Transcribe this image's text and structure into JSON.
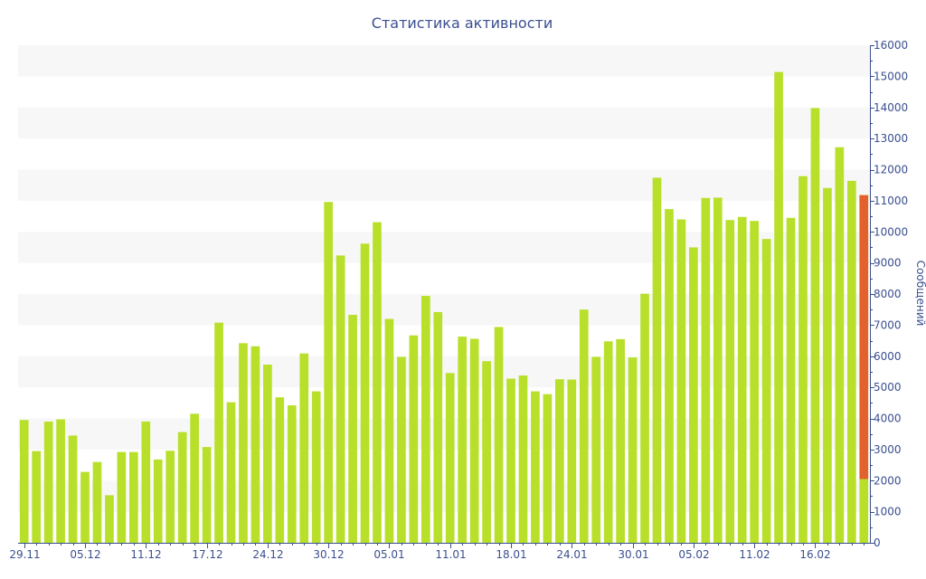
{
  "chart_data": {
    "type": "bar",
    "title": "Статистика активности",
    "ylabel": "Сообщений",
    "ylim": [
      0,
      16000
    ],
    "y_ticks": [
      0,
      1000,
      2000,
      3000,
      4000,
      5000,
      6000,
      7000,
      8000,
      9000,
      10000,
      11000,
      12000,
      13000,
      14000,
      15000,
      16000
    ],
    "y_axis_position": "right",
    "grid": "alternating horizontal bands",
    "x_tick_labels": [
      {
        "label": "29.11",
        "index": 0
      },
      {
        "label": "05.12",
        "index": 5
      },
      {
        "label": "11.12",
        "index": 10
      },
      {
        "label": "17.12",
        "index": 15
      },
      {
        "label": "24.12",
        "index": 20
      },
      {
        "label": "30.12",
        "index": 25
      },
      {
        "label": "05.01",
        "index": 30
      },
      {
        "label": "11.01",
        "index": 35
      },
      {
        "label": "18.01",
        "index": 40
      },
      {
        "label": "24.01",
        "index": 45
      },
      {
        "label": "30.01",
        "index": 50
      },
      {
        "label": "05.02",
        "index": 55
      },
      {
        "label": "11.02",
        "index": 60
      },
      {
        "label": "16.02",
        "index": 65
      }
    ],
    "values": [
      3950,
      2950,
      3900,
      3970,
      3450,
      2280,
      2600,
      1530,
      2920,
      2920,
      3900,
      2680,
      2960,
      3560,
      4150,
      3080,
      7080,
      4520,
      6420,
      6320,
      5730,
      4680,
      4420,
      6090,
      4870,
      10960,
      9240,
      7330,
      9620,
      10310,
      7200,
      5980,
      6670,
      7940,
      7420,
      5460,
      6630,
      6560,
      5840,
      6940,
      5280,
      5380,
      4870,
      4780,
      5260,
      5250,
      7500,
      5980,
      6480,
      6550,
      5960,
      8010,
      11740,
      10730,
      10400,
      9500,
      11090,
      11100,
      10380,
      10480,
      10350,
      9770,
      15140,
      10450,
      11790,
      13980,
      11410,
      12720,
      11640,
      11180
    ],
    "last_bar_highlight": {
      "index": 69,
      "from": 2050,
      "to": 11180
    },
    "colors": {
      "bar": "#b8e02a",
      "highlight": "#e2612c",
      "band": "#f7f7f7",
      "axis": "#3a4f8f"
    }
  }
}
